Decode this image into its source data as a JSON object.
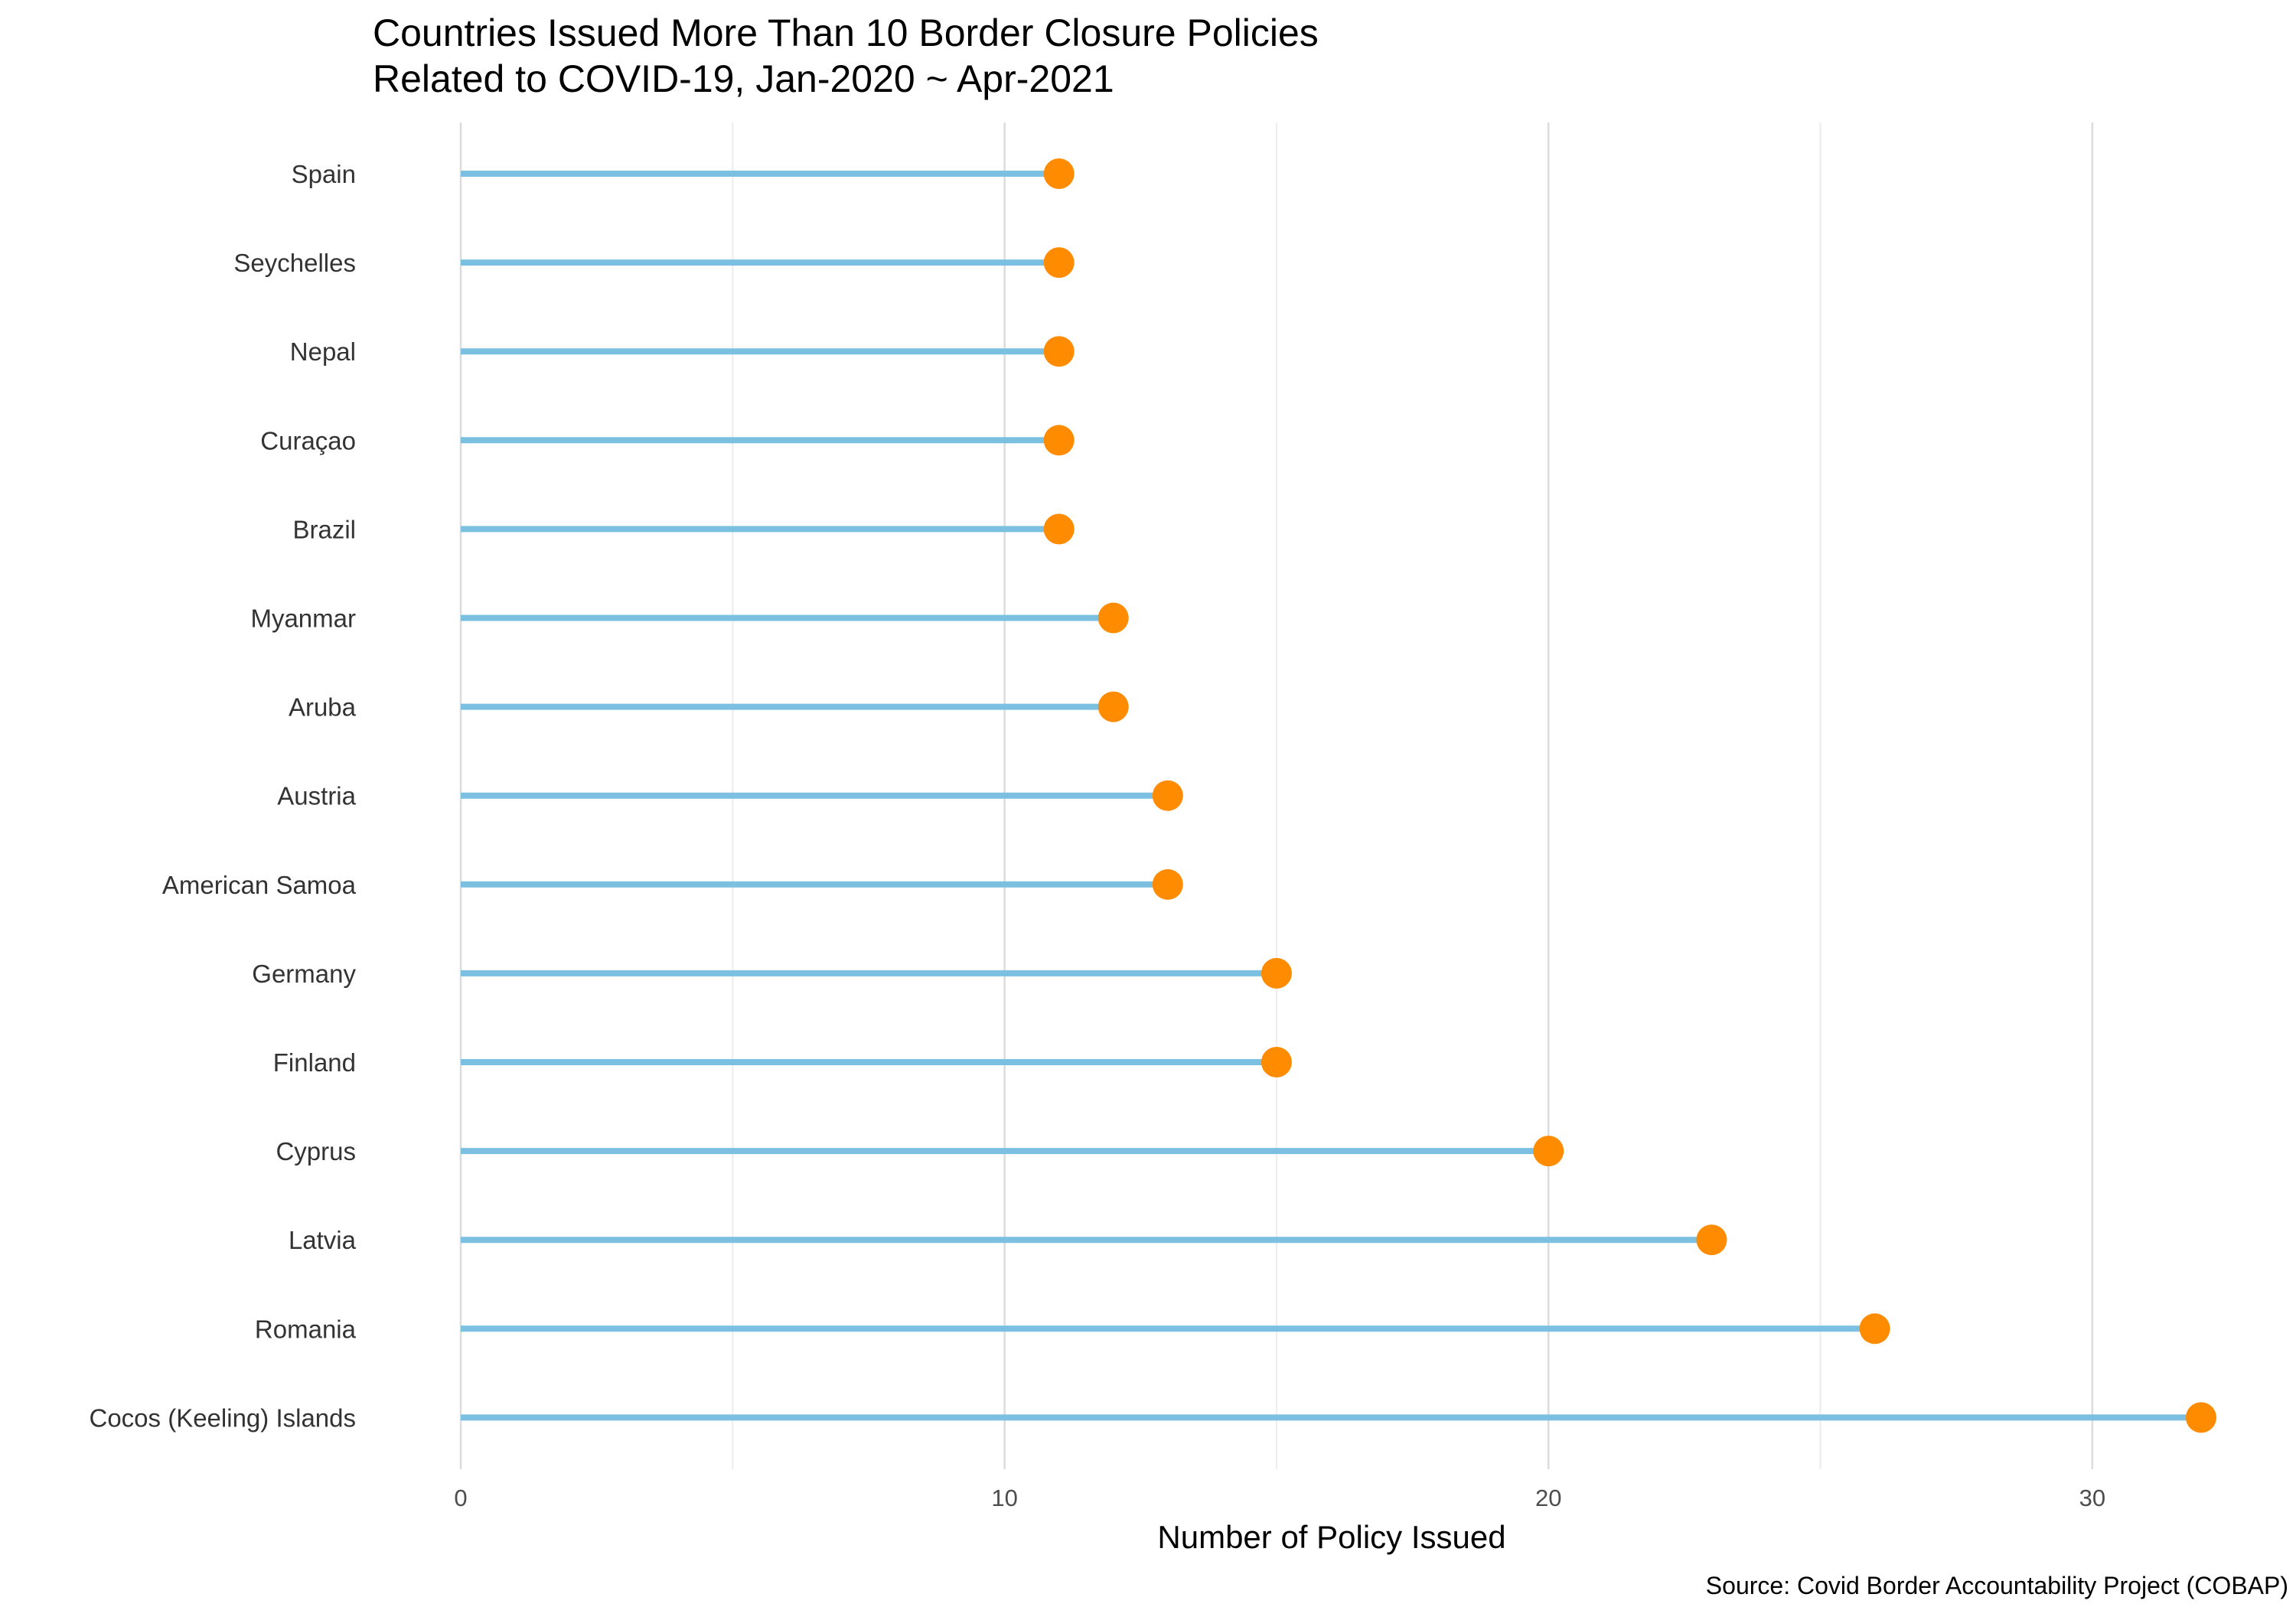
{
  "chart_data": {
    "type": "lollipop",
    "title": [
      "Countries Issued More Than 10 Border Closure Policies",
      "Related to COVID-19, Jan-2020 ~ Apr-2021"
    ],
    "xlabel": "Number of Policy Issued",
    "ylabel": "",
    "caption": "Source: Covid Border Accountability Project (COBAP)",
    "xlim": [
      0,
      32
    ],
    "xticks": [
      0,
      10,
      20,
      30
    ],
    "xtick_labels": [
      "0",
      "10",
      "20",
      "30"
    ],
    "minor_xticks": [
      5,
      15,
      25
    ],
    "grid": true,
    "categories": [
      "Spain",
      "Seychelles",
      "Nepal",
      "Curaçao",
      "Brazil",
      "Myanmar",
      "Aruba",
      "Austria",
      "American Samoa",
      "Germany",
      "Finland",
      "Cyprus",
      "Latvia",
      "Romania",
      "Cocos (Keeling) Islands"
    ],
    "values": [
      11,
      11,
      11,
      11,
      11,
      12,
      12,
      13,
      13,
      15,
      15,
      20,
      23,
      26,
      32
    ],
    "colors": {
      "stem": "#7bc0e0",
      "point": "#ff8c00",
      "grid_major": "#dcdcdc",
      "grid_minor": "#ececec"
    }
  }
}
